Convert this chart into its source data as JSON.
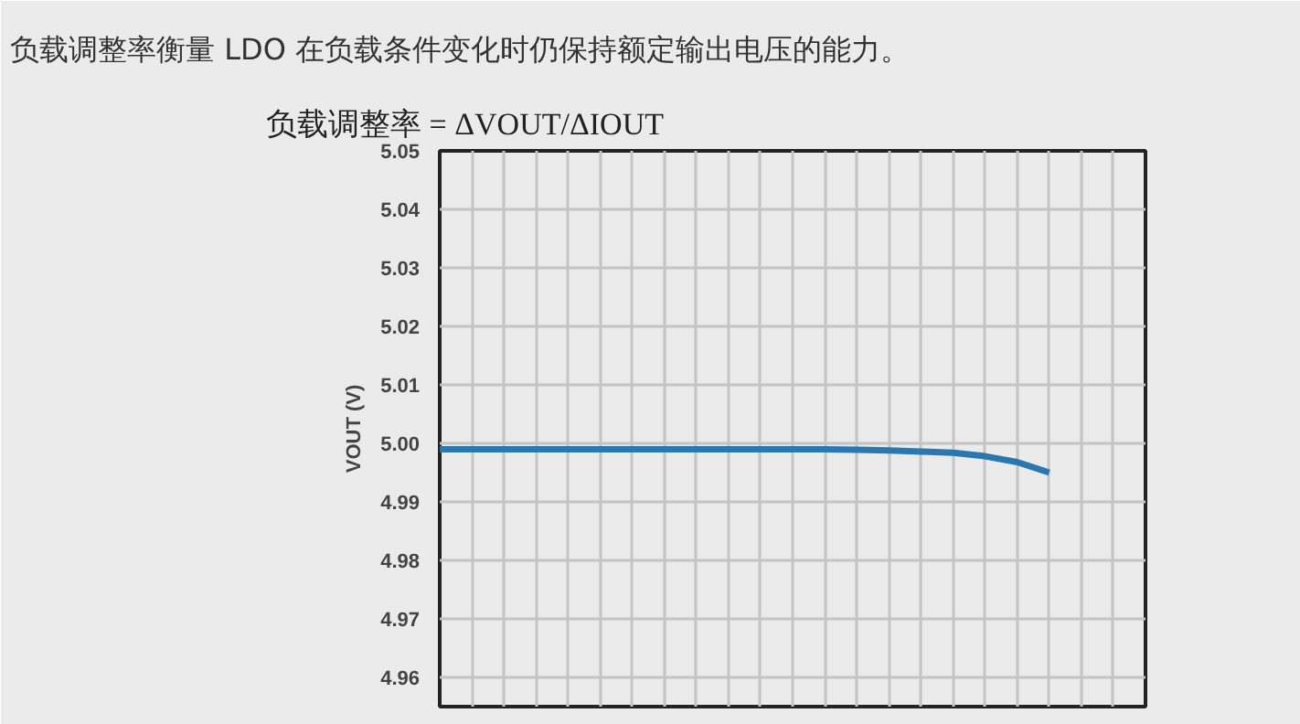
{
  "chart_data": {
    "type": "line",
    "title": "负载调整率衡量 LDO 在负载条件变化时仍保持额定输出电压的能力。",
    "subtitle": "负载调整率 = ΔVOUT/ΔIOUT",
    "ylabel": "VOUT (V)",
    "categories": [
      null,
      null,
      null,
      null,
      null,
      null,
      null,
      null,
      null,
      null,
      null,
      null,
      null,
      null,
      null,
      null,
      null,
      null,
      null,
      null,
      null,
      null,
      null
    ],
    "series": [
      {
        "color": "#2a78b0",
        "values": [
          4.999,
          4.999,
          4.999,
          4.999,
          4.999,
          4.999,
          4.999,
          4.999,
          4.999,
          4.999,
          4.999,
          4.999,
          4.999,
          4.9989,
          4.9988,
          4.9986,
          4.9984,
          4.9978,
          4.9968,
          4.995,
          null,
          null,
          null
        ]
      }
    ],
    "ylim": [
      4.955,
      5.05
    ],
    "yticks": [
      4.96,
      4.97,
      4.98,
      4.99,
      {
        "value": 5.0,
        "label": "5.00"
      },
      5.01,
      5.02,
      5.03,
      5.04,
      5.05
    ],
    "grid": true,
    "tick_labels": "y",
    "line_style": "solid",
    "marker": "none"
  }
}
